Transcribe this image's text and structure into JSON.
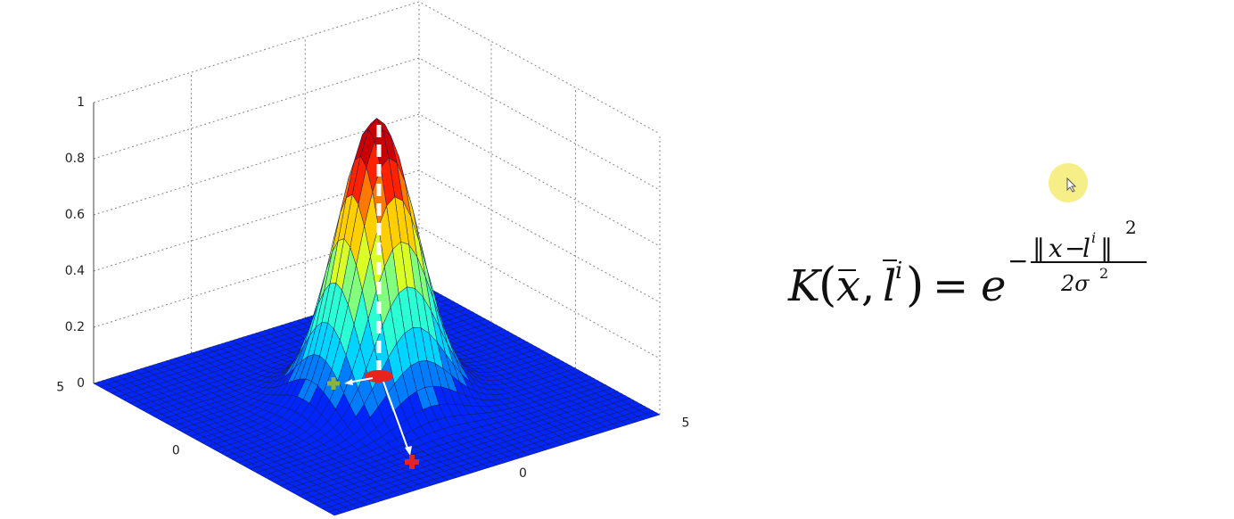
{
  "plot": {
    "zticks": [
      "0",
      "0.2",
      "0.4",
      "0.6",
      "0.8",
      "1"
    ],
    "xticks": [
      "0",
      "5"
    ],
    "yticks": [
      "5",
      "0"
    ]
  },
  "formula": {
    "function": "K",
    "open": "(",
    "vector_x": "x",
    "comma": ",",
    "landmark": "l",
    "landmark_index": "i",
    "close": ")",
    "equals": "=",
    "base": "e",
    "minus": "−",
    "norm": "‖",
    "numerator_x": "x",
    "numerator_minus": "−",
    "numerator_landmark": "l",
    "numerator_index": "i",
    "numerator_power": "2",
    "denominator": "2σ",
    "denominator_power": "2"
  }
}
